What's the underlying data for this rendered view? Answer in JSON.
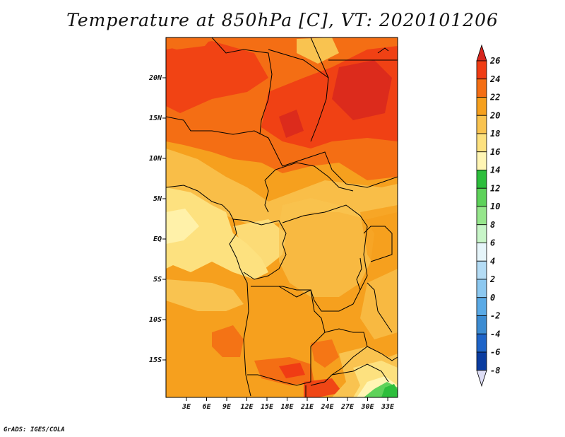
{
  "title": "Temperature at 850hPa [C], VT: 2020101206",
  "footer": "GrADS: IGES/COLA",
  "map": {
    "region": "Central Africa",
    "lat_labels": [
      "20N",
      "15N",
      "10N",
      "5N",
      "EQ",
      "5S",
      "10S",
      "15S"
    ],
    "lon_labels": [
      "3E",
      "6E",
      "9E",
      "12E",
      "15E",
      "18E",
      "21E",
      "24E",
      "27E",
      "30E",
      "33E"
    ]
  },
  "colorbar": {
    "unit": "C",
    "labels": [
      "26",
      "24",
      "22",
      "20",
      "18",
      "16",
      "14",
      "12",
      "10",
      "8",
      "6",
      "4",
      "2",
      "0",
      "-2",
      "-4",
      "-6",
      "-8"
    ],
    "colors": [
      "#d7261e",
      "#f03c14",
      "#f46e14",
      "#f6a01e",
      "#f9c350",
      "#fde17f",
      "#fff5b4",
      "#2dbe3c",
      "#5ed25a",
      "#96e68c",
      "#c8f5c8",
      "#e6f5fa",
      "#b4dcf5",
      "#8cc8f0",
      "#5aaae6",
      "#3c8cd2",
      "#1e64c8",
      "#0a3ca0",
      "#06207a"
    ],
    "upper_arrow": "#d7261e",
    "lower_arrow": "#ddddf5"
  }
}
